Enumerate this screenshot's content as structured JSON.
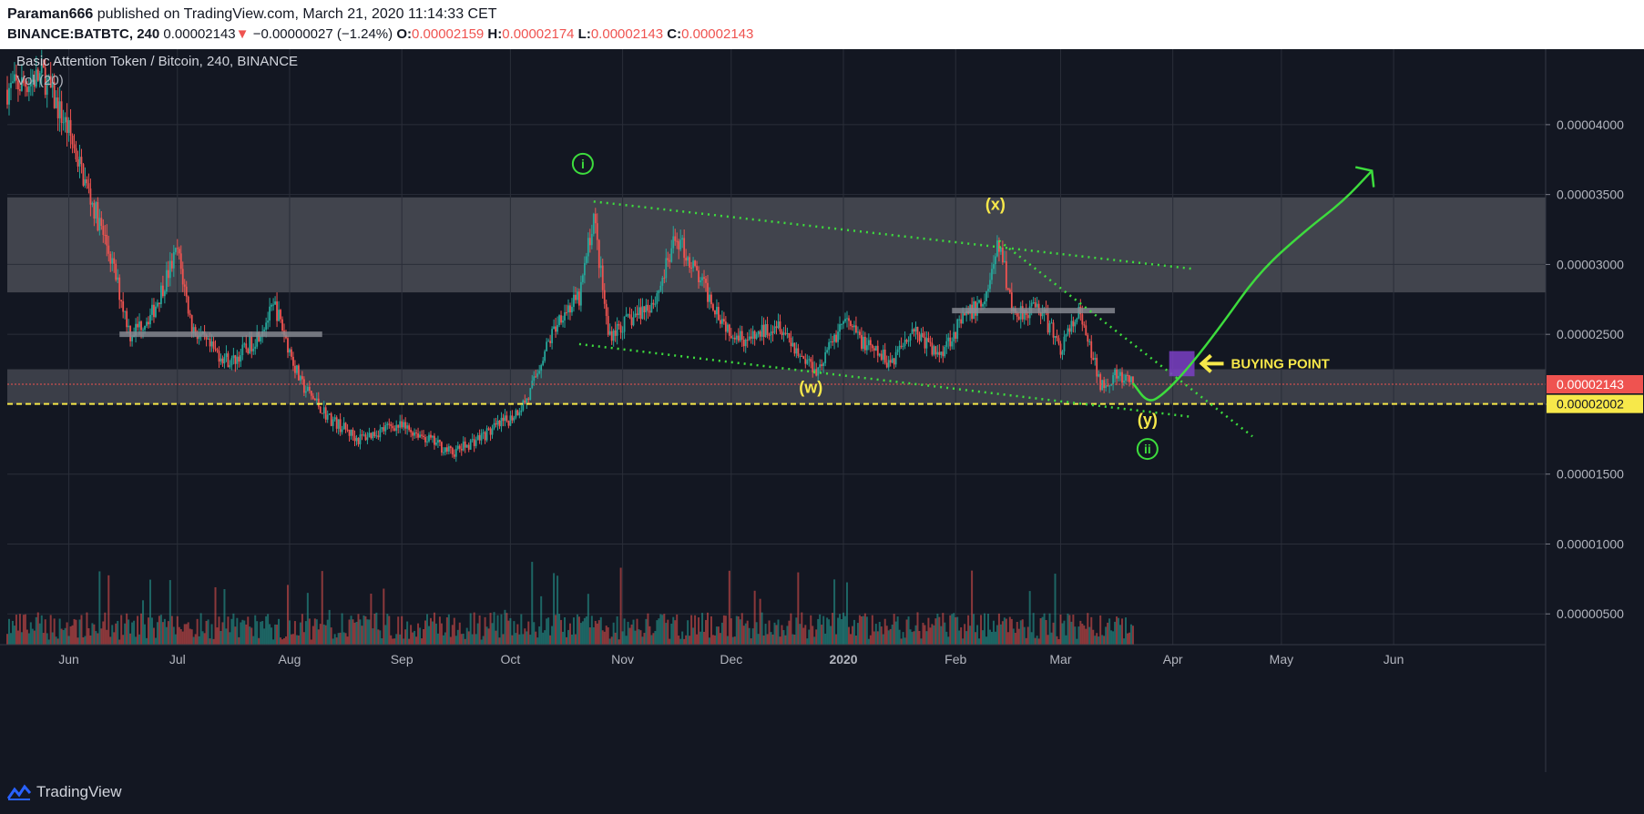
{
  "header": {
    "author": "Paraman666",
    "published": " published on TradingView.com, March 21, 2020 11:14:33 CET",
    "symbol": "BINANCE:BATBTC, 240",
    "last": "0.00002143",
    "arrow": "▼",
    "change": "−0.00000027 (−1.24%)",
    "o_label": "O:",
    "o_value": "0.00002159",
    "h_label": "H:",
    "h_value": "0.00002174",
    "l_label": "L:",
    "l_value": "0.00002143",
    "c_label": "C:",
    "c_value": "0.00002143"
  },
  "legend": {
    "title": "Basic Attention Token / Bitcoin, 240, BINANCE",
    "volume": "Vol (20)"
  },
  "annotations": {
    "wave_i": "i",
    "wave_ii": "ii",
    "wave_w": "(w)",
    "wave_x": "(x)",
    "wave_y": "(y)",
    "buying_point": "BUYING POINT"
  },
  "price_badges": {
    "last": "0.00002143",
    "support": "0.00002002"
  },
  "footer": {
    "brand": "TradingView"
  },
  "colors": {
    "background": "#131722",
    "up": "#26a69a",
    "down": "#ef5350",
    "zone": "#4a4c55",
    "annotation_green": "#3ddc3d",
    "annotation_yellow": "#f7e84a",
    "buy_box": "#7b3fc4"
  },
  "chart_data": {
    "type": "candlestick",
    "title": "Basic Attention Token / Bitcoin, 240, BINANCE",
    "x_ticks": [
      "Jun",
      "Jul",
      "Aug",
      "Sep",
      "Oct",
      "Nov",
      "Dec",
      "2020",
      "Feb",
      "Mar",
      "Apr",
      "May",
      "Jun"
    ],
    "y_ticks": [
      5e-06,
      1e-05,
      1.5e-05,
      2e-05,
      2.5e-05,
      3e-05,
      3.5e-05,
      4e-05
    ],
    "y_tick_labels": [
      "0.00000500",
      "0.00001000",
      "0.00001500",
      "0.00002000",
      "0.00002500",
      "0.00003000",
      "0.00003500",
      "0.00004000"
    ],
    "ylim": [
      2.8e-06,
      4.54e-05
    ],
    "xlim": [
      "2019-05-15",
      "2020-07-13"
    ],
    "last_price": 2.143e-05,
    "support_level": 2.002e-05,
    "close_path": [
      [
        "2019-05-15",
        4.25e-05
      ],
      [
        "2019-05-25",
        4.35e-05
      ],
      [
        "2019-06-01",
        3.95e-05
      ],
      [
        "2019-06-06",
        3.55e-05
      ],
      [
        "2019-06-12",
        3.1e-05
      ],
      [
        "2019-06-18",
        2.5e-05
      ],
      [
        "2019-06-24",
        2.65e-05
      ],
      [
        "2019-07-01",
        3.1e-05
      ],
      [
        "2019-07-05",
        2.55e-05
      ],
      [
        "2019-07-10",
        2.4e-05
      ],
      [
        "2019-07-16",
        2.3e-05
      ],
      [
        "2019-07-22",
        2.45e-05
      ],
      [
        "2019-07-28",
        2.7e-05
      ],
      [
        "2019-08-04",
        2.15e-05
      ],
      [
        "2019-08-12",
        1.9e-05
      ],
      [
        "2019-08-20",
        1.75e-05
      ],
      [
        "2019-08-30",
        1.85e-05
      ],
      [
        "2019-09-05",
        1.8e-05
      ],
      [
        "2019-09-15",
        1.65e-05
      ],
      [
        "2019-09-25",
        1.8e-05
      ],
      [
        "2019-10-01",
        1.9e-05
      ],
      [
        "2019-10-06",
        2.05e-05
      ],
      [
        "2019-10-10",
        2.35e-05
      ],
      [
        "2019-10-15",
        2.65e-05
      ],
      [
        "2019-10-20",
        2.75e-05
      ],
      [
        "2019-10-24",
        3.35e-05
      ],
      [
        "2019-10-28",
        2.5e-05
      ],
      [
        "2019-11-03",
        2.6e-05
      ],
      [
        "2019-11-10",
        2.75e-05
      ],
      [
        "2019-11-16",
        3.2e-05
      ],
      [
        "2019-11-22",
        2.9e-05
      ],
      [
        "2019-11-30",
        2.55e-05
      ],
      [
        "2019-12-06",
        2.45e-05
      ],
      [
        "2019-12-14",
        2.6e-05
      ],
      [
        "2019-12-20",
        2.35e-05
      ],
      [
        "2019-12-25",
        2.25e-05
      ],
      [
        "2020-01-01",
        2.6e-05
      ],
      [
        "2020-01-08",
        2.4e-05
      ],
      [
        "2020-01-14",
        2.3e-05
      ],
      [
        "2020-01-20",
        2.55e-05
      ],
      [
        "2020-01-27",
        2.35e-05
      ],
      [
        "2020-02-03",
        2.6e-05
      ],
      [
        "2020-02-09",
        2.75e-05
      ],
      [
        "2020-02-13",
        3.15e-05
      ],
      [
        "2020-02-17",
        2.65e-05
      ],
      [
        "2020-02-24",
        2.7e-05
      ],
      [
        "2020-03-01",
        2.4e-05
      ],
      [
        "2020-03-06",
        2.65e-05
      ],
      [
        "2020-03-12",
        2.15e-05
      ],
      [
        "2020-03-16",
        2.2e-05
      ],
      [
        "2020-03-21",
        2.143e-05
      ]
    ],
    "volume_range": [
      0,
      9.5e-06
    ],
    "resistance_zone": [
      2.8e-05,
      3.48e-05
    ],
    "support_zone": [
      2e-05,
      2.25e-05
    ],
    "horizontal_levels": [
      {
        "from": "2019-06-15",
        "to": "2019-08-10",
        "y": 2.5e-05
      },
      {
        "from": "2020-01-31",
        "to": "2020-03-16",
        "y": 2.67e-05
      }
    ],
    "trendlines": [
      {
        "from": [
          "2019-10-24",
          3.45e-05
        ],
        "to": [
          "2020-04-06",
          2.97e-05
        ]
      },
      {
        "from": [
          "2019-10-20",
          2.43e-05
        ],
        "to": [
          "2020-04-06",
          1.91e-05
        ]
      },
      {
        "from": [
          "2020-02-13",
          3.17e-05
        ],
        "to": [
          "2020-04-23",
          1.77e-05
        ]
      }
    ],
    "projection": [
      [
        "2020-03-21",
        2.15e-05
      ],
      [
        "2020-03-25",
        2.01e-05
      ],
      [
        "2020-03-29",
        2.06e-05
      ],
      [
        "2020-04-05",
        2.25e-05
      ],
      [
        "2020-04-14",
        2.55e-05
      ],
      [
        "2020-04-25",
        2.95e-05
      ],
      [
        "2020-05-08",
        3.25e-05
      ],
      [
        "2020-05-18",
        3.45e-05
      ],
      [
        "2020-05-26",
        3.67e-05
      ]
    ],
    "buy_zone": {
      "from": "2020-03-31",
      "to": "2020-04-07",
      "y_top": 2.38e-05,
      "y_bottom": 2.2e-05
    },
    "labels": [
      {
        "key": "wave_i",
        "date": "2019-10-21",
        "y": 3.72e-05,
        "shape": "circle"
      },
      {
        "key": "wave_x",
        "date": "2020-02-12",
        "y": 3.39e-05,
        "shape": "text"
      },
      {
        "key": "wave_w",
        "date": "2019-12-23",
        "y": 2.08e-05,
        "shape": "text"
      },
      {
        "key": "wave_y",
        "date": "2020-03-25",
        "y": 1.85e-05,
        "shape": "text"
      },
      {
        "key": "wave_ii",
        "date": "2020-03-25",
        "y": 1.68e-05,
        "shape": "circle"
      }
    ]
  }
}
